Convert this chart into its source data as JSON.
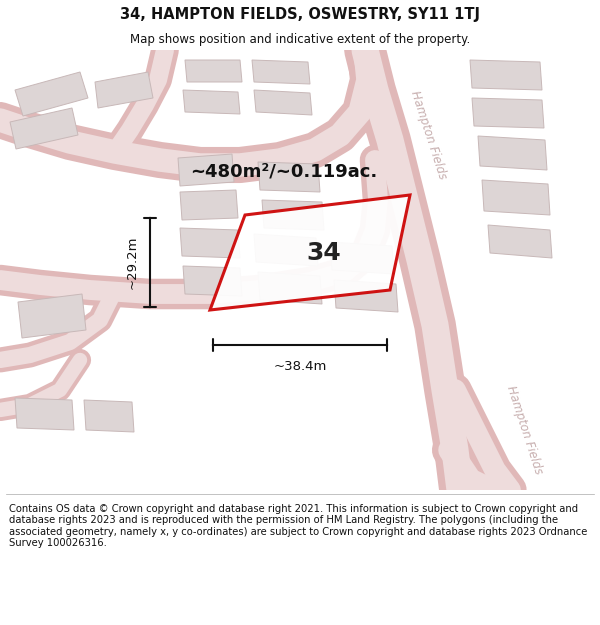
{
  "title": "34, HAMPTON FIELDS, OSWESTRY, SY11 1TJ",
  "subtitle": "Map shows position and indicative extent of the property.",
  "footer": "Contains OS data © Crown copyright and database right 2021. This information is subject to Crown copyright and database rights 2023 and is reproduced with the permission of HM Land Registry. The polygons (including the associated geometry, namely x, y co-ordinates) are subject to Crown copyright and database rights 2023 Ordnance Survey 100026316.",
  "area_label": "~480m²/~0.119ac.",
  "width_label": "~38.4m",
  "height_label": "~29.2m",
  "plot_number": "34",
  "map_bg": "#f2eeee",
  "road_outer": "#e0b8b8",
  "road_inner": "#eedcdc",
  "building_fill": "#ddd5d5",
  "building_edge": "#c8b8b8",
  "plot_edge": "#cc0000",
  "street_color": "#c8b0b0",
  "title_color": "#111111",
  "footer_color": "#111111"
}
